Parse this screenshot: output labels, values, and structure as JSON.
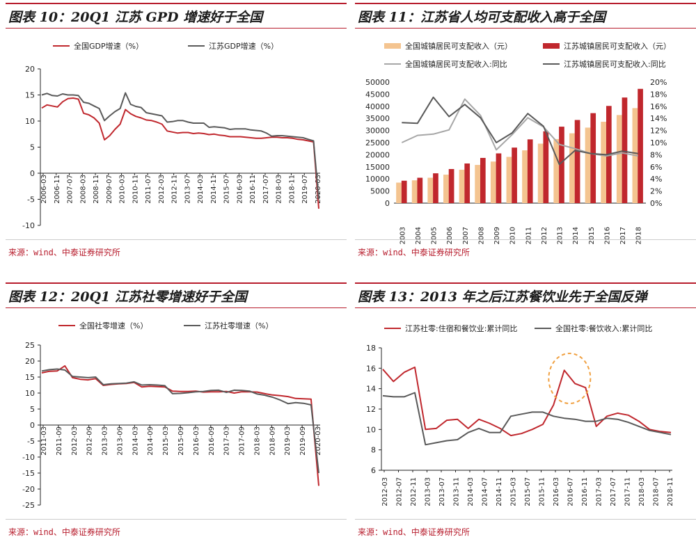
{
  "colors": {
    "red": "#c0272d",
    "gray": "#595959",
    "peach": "#f4c490",
    "lightgray": "#a6a6a6",
    "accent": "#b71c2c",
    "orange": "#f0a040"
  },
  "panels": [
    {
      "title": "图表 10：20Q1 江苏 GPD 增速好于全国",
      "source": "来源：wind、中泰证券研究所"
    },
    {
      "title": "图表 11：江苏省人均可支配收入高于全国",
      "source": "来源：wind、中泰证券研究所"
    },
    {
      "title": "图表 12：20Q1 江苏社零增速好于全国",
      "source": "来源：wind、中泰证券研究所"
    },
    {
      "title": "图表 13：2013 年之后江苏餐饮业先于全国反弹",
      "source": "来源：wind、中泰证券研究所"
    }
  ],
  "chart_data": [
    {
      "type": "line",
      "ylim": [
        -10,
        20
      ],
      "yticks": [
        20,
        15,
        10,
        5,
        0,
        -5,
        -10
      ],
      "tick_labels": [
        "2006-03",
        "2006-11",
        "2007-07",
        "2008-03",
        "2008-11",
        "2009-07",
        "2010-03",
        "2010-11",
        "2011-07",
        "2012-03",
        "2012-11",
        "2013-07",
        "2014-03",
        "2014-11",
        "2015-07",
        "2016-03",
        "2016-11",
        "2017-07",
        "2018-03",
        "2018-11",
        "2019-07",
        "2020-03"
      ],
      "series": [
        {
          "name": "全国GDP增速（%）",
          "color": "red",
          "values": [
            12.5,
            13.1,
            12.9,
            12.7,
            13.7,
            14.3,
            14.4,
            14.2,
            11.5,
            11.2,
            10.6,
            9.6,
            6.4,
            7.2,
            8.4,
            9.4,
            12.2,
            11.4,
            10.9,
            10.6,
            10.2,
            10.1,
            9.8,
            9.4,
            8.1,
            7.9,
            7.7,
            7.8,
            7.8,
            7.6,
            7.7,
            7.6,
            7.4,
            7.5,
            7.3,
            7.2,
            7.0,
            7.0,
            7.0,
            6.9,
            6.8,
            6.7,
            6.7,
            6.8,
            6.9,
            6.9,
            6.8,
            6.8,
            6.7,
            6.5,
            6.4,
            6.2,
            6.0,
            -6.8
          ]
        },
        {
          "name": "江苏GDP增速（%）",
          "color": "gray",
          "values": [
            15.0,
            15.3,
            14.9,
            14.8,
            15.2,
            15.0,
            15.0,
            14.9,
            13.6,
            13.4,
            12.9,
            12.4,
            10.1,
            11.0,
            11.8,
            12.4,
            15.4,
            13.2,
            12.8,
            12.6,
            11.6,
            11.4,
            11.2,
            11.0,
            9.8,
            9.9,
            10.1,
            10.1,
            9.8,
            9.6,
            9.6,
            9.6,
            8.8,
            8.9,
            8.8,
            8.7,
            8.4,
            8.5,
            8.5,
            8.5,
            8.3,
            8.2,
            8.1,
            7.7,
            7.1,
            7.2,
            7.2,
            7.1,
            7.0,
            6.9,
            6.8,
            6.5,
            6.2,
            -5.0
          ]
        }
      ]
    },
    {
      "type": "bar",
      "categories": [
        "2003",
        "2004",
        "2005",
        "2006",
        "2007",
        "2008",
        "2009",
        "2010",
        "2011",
        "2012",
        "2013",
        "2014",
        "2015",
        "2016",
        "2017",
        "2018"
      ],
      "ylim": [
        0,
        50000
      ],
      "yticks": [
        50000,
        45000,
        40000,
        35000,
        30000,
        25000,
        20000,
        15000,
        10000,
        5000,
        0
      ],
      "y2lim": [
        0,
        20
      ],
      "y2ticks": [
        "20%",
        "18%",
        "16%",
        "14%",
        "12%",
        "10%",
        "8%",
        "6%",
        "4%",
        "2%",
        "0%"
      ],
      "series": [
        {
          "name": "全国城镇居民可支配收入（元）",
          "kind": "bar",
          "color": "peach",
          "values": [
            8472,
            9422,
            10493,
            11759,
            13786,
            15781,
            17175,
            19109,
            21810,
            24565,
            26467,
            28844,
            31195,
            33616,
            36396,
            39251
          ]
        },
        {
          "name": "江苏城镇居民可支配收入（元）",
          "kind": "bar",
          "color": "red",
          "values": [
            9262,
            10482,
            12319,
            14084,
            16378,
            18680,
            20552,
            22944,
            26341,
            29677,
            31585,
            34346,
            37173,
            40152,
            43622,
            47200
          ]
        },
        {
          "name": "全国城镇居民可支配收入:同比",
          "kind": "line",
          "color": "lightgray",
          "values": [
            10.0,
            11.2,
            11.4,
            12.1,
            17.2,
            14.5,
            8.8,
            11.3,
            14.1,
            12.6,
            9.7,
            9.0,
            8.2,
            7.8,
            8.3,
            7.8
          ]
        },
        {
          "name": "江苏城镇居民可支配收入:同比",
          "kind": "line",
          "color": "gray",
          "values": [
            13.3,
            13.2,
            17.5,
            14.3,
            16.3,
            14.1,
            10.0,
            11.6,
            14.8,
            12.7,
            6.4,
            8.7,
            8.2,
            8.0,
            8.6,
            8.2
          ]
        }
      ]
    },
    {
      "type": "line",
      "ylim": [
        -25,
        25
      ],
      "yticks": [
        25,
        20,
        15,
        10,
        5,
        0,
        -5,
        -10,
        -15,
        -20,
        -25
      ],
      "tick_labels": [
        "2011-03",
        "2011-09",
        "2012-03",
        "2012-09",
        "2013-03",
        "2013-09",
        "2014-03",
        "2014-09",
        "2015-03",
        "2015-09",
        "2016-03",
        "2016-09",
        "2017-03",
        "2017-09",
        "2018-03",
        "2018-09",
        "2019-03",
        "2019-09",
        "2020-03"
      ],
      "series": [
        {
          "name": "全国社零增速（%）",
          "color": "red",
          "values": [
            16.3,
            16.8,
            16.9,
            18.5,
            14.8,
            14.3,
            14.1,
            14.5,
            12.4,
            12.7,
            12.9,
            13.0,
            13.3,
            11.9,
            12.1,
            12.0,
            11.9,
            10.6,
            10.5,
            10.5,
            10.6,
            10.3,
            10.4,
            10.4,
            10.5,
            10.0,
            10.4,
            10.4,
            10.3,
            9.8,
            9.4,
            9.2,
            8.9,
            8.3,
            8.2,
            8.1,
            -19.0
          ]
        },
        {
          "name": "江苏社零增速（%）",
          "color": "gray",
          "values": [
            16.9,
            17.3,
            17.5,
            17.2,
            15.2,
            15.0,
            14.8,
            15.0,
            12.6,
            12.9,
            13.0,
            13.1,
            13.5,
            12.5,
            12.6,
            12.5,
            12.3,
            9.8,
            9.9,
            10.1,
            10.4,
            10.5,
            10.8,
            10.9,
            10.2,
            10.9,
            10.8,
            10.6,
            9.7,
            9.3,
            8.7,
            7.8,
            6.7,
            7.0,
            6.8,
            6.3,
            -15.0
          ]
        }
      ]
    },
    {
      "type": "line",
      "ylim": [
        6,
        18
      ],
      "yticks": [
        18,
        16,
        14,
        12,
        10,
        8,
        6
      ],
      "tick_labels": [
        "2012-03",
        "2012-07",
        "2012-11",
        "2013-03",
        "2013-07",
        "2013-11",
        "2014-03",
        "2014-07",
        "2014-11",
        "2015-03",
        "2015-07",
        "2015-11",
        "2016-03",
        "2016-07",
        "2016-11",
        "2017-03",
        "2017-07",
        "2017-11",
        "2018-03",
        "2018-07",
        "2018-11"
      ],
      "series": [
        {
          "name": "江苏社零:住宿和餐饮业:累计同比",
          "color": "red",
          "values": [
            15.9,
            14.7,
            15.6,
            16.1,
            10.0,
            10.1,
            10.9,
            11.0,
            10.1,
            11.0,
            10.6,
            10.1,
            9.4,
            9.6,
            10.0,
            10.5,
            12.4,
            15.8,
            14.5,
            14.1,
            10.3,
            11.3,
            11.6,
            11.4,
            10.8,
            10.0,
            9.8,
            9.7
          ]
        },
        {
          "name": "全国社零:餐饮收入:累计同比",
          "color": "gray",
          "values": [
            13.3,
            13.2,
            13.2,
            13.6,
            8.5,
            8.7,
            8.9,
            9.0,
            9.7,
            10.1,
            9.7,
            9.7,
            11.3,
            11.5,
            11.7,
            11.7,
            11.3,
            11.1,
            11.0,
            10.8,
            10.8,
            11.1,
            11.0,
            10.7,
            10.3,
            9.9,
            9.7,
            9.5
          ]
        }
      ],
      "annotation": "dashed-orange-ellipse"
    }
  ]
}
